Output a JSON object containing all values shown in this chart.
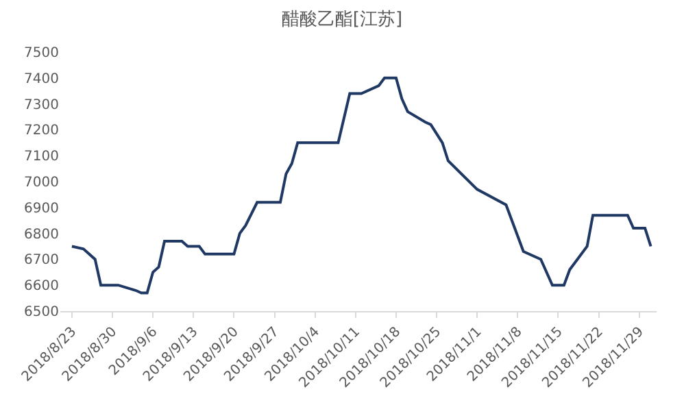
{
  "chart_data": {
    "type": "line",
    "title": "醋酸乙酯[江苏]",
    "x": [
      "2018-08-23",
      "2018-08-25",
      "2018-08-27",
      "2018-08-28",
      "2018-08-31",
      "2018-09-03",
      "2018-09-04",
      "2018-09-05",
      "2018-09-06",
      "2018-09-07",
      "2018-09-08",
      "2018-09-11",
      "2018-09-12",
      "2018-09-14",
      "2018-09-15",
      "2018-09-20",
      "2018-09-21",
      "2018-09-22",
      "2018-09-24",
      "2018-09-28",
      "2018-09-29",
      "2018-09-30",
      "2018-10-01",
      "2018-10-08",
      "2018-10-10",
      "2018-10-12",
      "2018-10-15",
      "2018-10-16",
      "2018-10-18",
      "2018-10-19",
      "2018-10-20",
      "2018-10-23",
      "2018-10-24",
      "2018-10-26",
      "2018-10-27",
      "2018-11-01",
      "2018-11-06",
      "2018-11-09",
      "2018-11-12",
      "2018-11-14",
      "2018-11-16",
      "2018-11-17",
      "2018-11-20",
      "2018-11-21",
      "2018-11-27",
      "2018-11-28",
      "2018-11-30",
      "2018-12-01"
    ],
    "series": [
      {
        "color": "#203864",
        "values": [
          6750,
          6740,
          6700,
          6600,
          6600,
          6580,
          6570,
          6570,
          6650,
          6670,
          6770,
          6770,
          6750,
          6750,
          6720,
          6720,
          6800,
          6830,
          6920,
          6920,
          7030,
          7070,
          7150,
          7150,
          7340,
          7340,
          7370,
          7400,
          7400,
          7320,
          7270,
          7230,
          7220,
          7150,
          7080,
          6970,
          6910,
          6730,
          6700,
          6600,
          6600,
          6660,
          6750,
          6870,
          6870,
          6820,
          6820,
          6750
        ]
      }
    ],
    "xlim": [
      "2018-08-21",
      "2018-12-02"
    ],
    "xticks": [
      {
        "value": "2018-08-23",
        "label": "2018/8/23"
      },
      {
        "value": "2018-08-30",
        "label": "2018/8/30"
      },
      {
        "value": "2018-09-06",
        "label": "2018/9/6"
      },
      {
        "value": "2018-09-13",
        "label": "2018/9/13"
      },
      {
        "value": "2018-09-20",
        "label": "2018/9/20"
      },
      {
        "value": "2018-09-27",
        "label": "2018/9/27"
      },
      {
        "value": "2018-10-04",
        "label": "2018/10/4"
      },
      {
        "value": "2018-10-11",
        "label": "2018/10/11"
      },
      {
        "value": "2018-10-18",
        "label": "2018/10/18"
      },
      {
        "value": "2018-10-25",
        "label": "2018/10/25"
      },
      {
        "value": "2018-11-01",
        "label": "2018/11/1"
      },
      {
        "value": "2018-11-08",
        "label": "2018/11/8"
      },
      {
        "value": "2018-11-15",
        "label": "2018/11/15"
      },
      {
        "value": "2018-11-22",
        "label": "2018/11/22"
      },
      {
        "value": "2018-11-29",
        "label": "2018/11/29"
      }
    ],
    "ylim": [
      6500,
      7500
    ],
    "yticks": [
      6500,
      6600,
      6700,
      6800,
      6900,
      7000,
      7100,
      7200,
      7300,
      7400,
      7500
    ],
    "grid": false,
    "legend": false,
    "marker": "none",
    "line_style": "solid"
  }
}
